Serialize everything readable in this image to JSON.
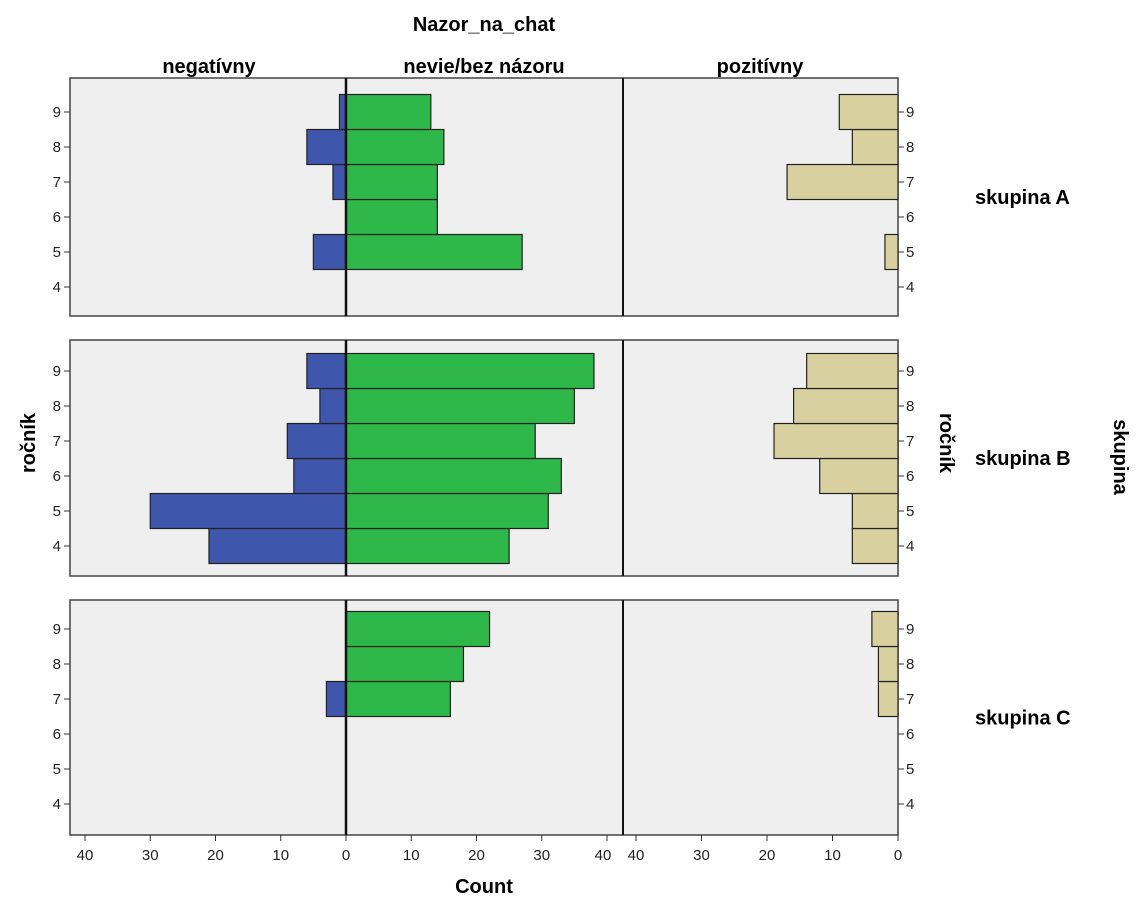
{
  "chart_data": {
    "type": "bar",
    "title": "Nazor_na_chat",
    "xlabel": "Count",
    "ylabel": "ročník",
    "ylabel_right": "ročník",
    "row_variable": "skupina",
    "categories": [
      "4",
      "5",
      "6",
      "7",
      "8",
      "9"
    ],
    "xticks": [
      "40",
      "30",
      "20",
      "10",
      "0"
    ],
    "xticks_mid": [
      "0",
      "10",
      "20",
      "30",
      "40"
    ],
    "grid": false,
    "colors": {
      "negativny": "#3f56ad",
      "nevie": "#2fb84a",
      "pozitivny": "#d9d0a0",
      "panel_bg": "#efefef"
    },
    "columns": [
      {
        "name": "negatívny",
        "direction": "left",
        "xlim": [
          40,
          0
        ]
      },
      {
        "name": "nevie/bez názoru",
        "direction": "right",
        "xlim": [
          0,
          40
        ]
      },
      {
        "name": "pozitívny",
        "direction": "left",
        "xlim": [
          40,
          0
        ]
      }
    ],
    "rows": [
      {
        "name": "skupina A",
        "series": [
          {
            "name": "negatívny",
            "values": [
              0,
              5,
              0,
              2,
              6,
              1
            ]
          },
          {
            "name": "nevie/bez názoru",
            "values": [
              0,
              27,
              14,
              14,
              15,
              13
            ]
          },
          {
            "name": "pozitívny",
            "values": [
              0,
              2,
              0,
              17,
              7,
              9
            ]
          }
        ]
      },
      {
        "name": "skupina B",
        "series": [
          {
            "name": "negatívny",
            "values": [
              21,
              30,
              8,
              9,
              4,
              6
            ]
          },
          {
            "name": "nevie/bez názoru",
            "values": [
              25,
              31,
              33,
              29,
              35,
              38
            ]
          },
          {
            "name": "pozitívny",
            "values": [
              7,
              7,
              12,
              19,
              16,
              14
            ]
          }
        ]
      },
      {
        "name": "skupina C",
        "series": [
          {
            "name": "negatívny",
            "values": [
              0,
              0,
              0,
              3,
              0,
              0
            ]
          },
          {
            "name": "nevie/bez názoru",
            "values": [
              0,
              0,
              0,
              16,
              18,
              22
            ]
          },
          {
            "name": "pozitívny",
            "values": [
              0,
              0,
              0,
              3,
              3,
              4
            ]
          }
        ]
      }
    ]
  }
}
